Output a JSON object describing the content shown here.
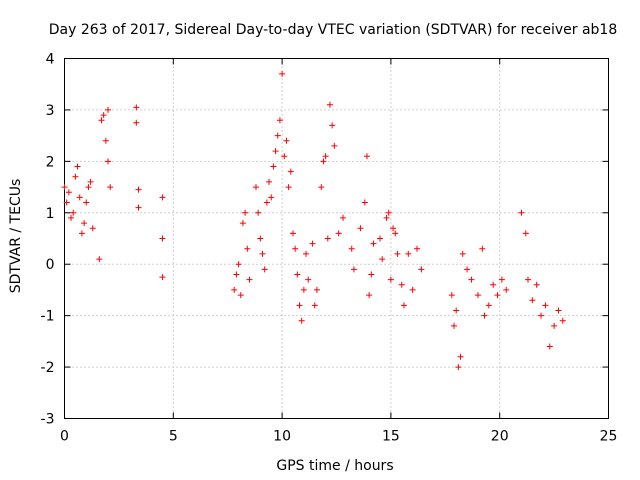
{
  "chart_data": {
    "type": "scatter",
    "title": "Day 263 of 2017, Sidereal Day-to-day VTEC variation (SDTVAR) for receiver ab18",
    "xlabel": "GPS time / hours",
    "ylabel": "SDTVAR / TECUs",
    "xlim": [
      0,
      25
    ],
    "ylim": [
      -3,
      4
    ],
    "xticks": [
      "0",
      "5",
      "10",
      "15",
      "20",
      "25"
    ],
    "yticks": [
      "-3",
      "-2",
      "-1",
      "0",
      "1",
      "2",
      "3",
      "4"
    ],
    "grid": true,
    "marker": "+",
    "color": "#ff0000",
    "series": [
      {
        "name": "SDTVAR",
        "points": [
          [
            0.0,
            1.5
          ],
          [
            0.1,
            1.2
          ],
          [
            0.2,
            1.4
          ],
          [
            0.3,
            0.9
          ],
          [
            0.4,
            1.0
          ],
          [
            0.5,
            1.7
          ],
          [
            0.6,
            1.9
          ],
          [
            0.7,
            1.3
          ],
          [
            0.8,
            0.6
          ],
          [
            0.9,
            0.8
          ],
          [
            1.0,
            1.2
          ],
          [
            1.1,
            1.5
          ],
          [
            1.2,
            1.6
          ],
          [
            1.3,
            0.7
          ],
          [
            1.6,
            0.1
          ],
          [
            1.7,
            2.8
          ],
          [
            1.8,
            2.9
          ],
          [
            1.9,
            2.4
          ],
          [
            2.0,
            2.0
          ],
          [
            2.1,
            1.5
          ],
          [
            2.0,
            3.0
          ],
          [
            3.3,
            3.05
          ],
          [
            3.3,
            2.75
          ],
          [
            3.4,
            1.45
          ],
          [
            3.4,
            1.1
          ],
          [
            4.5,
            1.3
          ],
          [
            4.5,
            0.5
          ],
          [
            4.5,
            -0.25
          ],
          [
            7.8,
            -0.5
          ],
          [
            7.9,
            -0.2
          ],
          [
            8.0,
            0.0
          ],
          [
            8.1,
            -0.6
          ],
          [
            8.2,
            0.8
          ],
          [
            8.3,
            1.0
          ],
          [
            8.4,
            0.3
          ],
          [
            8.5,
            -0.3
          ],
          [
            8.8,
            1.5
          ],
          [
            8.9,
            1.0
          ],
          [
            9.0,
            0.5
          ],
          [
            9.1,
            0.2
          ],
          [
            9.2,
            -0.1
          ],
          [
            9.3,
            1.2
          ],
          [
            9.4,
            1.6
          ],
          [
            9.5,
            1.3
          ],
          [
            9.6,
            1.9
          ],
          [
            9.7,
            2.2
          ],
          [
            9.8,
            2.5
          ],
          [
            9.9,
            2.8
          ],
          [
            10.0,
            3.7
          ],
          [
            10.1,
            2.1
          ],
          [
            10.2,
            2.4
          ],
          [
            10.3,
            1.5
          ],
          [
            10.4,
            1.8
          ],
          [
            10.5,
            0.6
          ],
          [
            10.6,
            0.3
          ],
          [
            10.7,
            -0.2
          ],
          [
            10.8,
            -0.8
          ],
          [
            10.9,
            -1.1
          ],
          [
            11.0,
            -0.5
          ],
          [
            11.1,
            0.2
          ],
          [
            11.2,
            -0.3
          ],
          [
            11.4,
            0.4
          ],
          [
            11.5,
            -0.8
          ],
          [
            11.6,
            -0.5
          ],
          [
            11.8,
            1.5
          ],
          [
            11.9,
            2.0
          ],
          [
            12.0,
            2.1
          ],
          [
            12.1,
            0.5
          ],
          [
            12.2,
            3.1
          ],
          [
            12.3,
            2.7
          ],
          [
            12.4,
            2.3
          ],
          [
            12.6,
            0.6
          ],
          [
            12.8,
            0.9
          ],
          [
            13.2,
            0.3
          ],
          [
            13.3,
            -0.1
          ],
          [
            13.6,
            0.7
          ],
          [
            13.8,
            1.2
          ],
          [
            13.9,
            2.1
          ],
          [
            14.0,
            -0.6
          ],
          [
            14.1,
            -0.2
          ],
          [
            14.2,
            0.4
          ],
          [
            14.5,
            0.5
          ],
          [
            14.6,
            0.1
          ],
          [
            14.8,
            0.9
          ],
          [
            14.9,
            1.0
          ],
          [
            15.0,
            -0.3
          ],
          [
            15.1,
            0.7
          ],
          [
            15.2,
            0.6
          ],
          [
            15.3,
            0.2
          ],
          [
            15.5,
            -0.4
          ],
          [
            15.6,
            -0.8
          ],
          [
            15.8,
            0.2
          ],
          [
            16.0,
            -0.5
          ],
          [
            16.2,
            0.3
          ],
          [
            16.4,
            -0.1
          ],
          [
            17.8,
            -0.6
          ],
          [
            17.9,
            -1.2
          ],
          [
            18.0,
            -0.9
          ],
          [
            18.1,
            -2.0
          ],
          [
            18.2,
            -1.8
          ],
          [
            18.3,
            0.2
          ],
          [
            18.5,
            -0.1
          ],
          [
            18.7,
            -0.3
          ],
          [
            19.0,
            -0.6
          ],
          [
            19.2,
            0.3
          ],
          [
            19.3,
            -1.0
          ],
          [
            19.5,
            -0.8
          ],
          [
            19.7,
            -0.4
          ],
          [
            19.9,
            -0.6
          ],
          [
            20.1,
            -0.3
          ],
          [
            20.3,
            -0.5
          ],
          [
            21.0,
            1.0
          ],
          [
            21.2,
            0.6
          ],
          [
            21.3,
            -0.3
          ],
          [
            21.5,
            -0.7
          ],
          [
            21.7,
            -0.4
          ],
          [
            21.9,
            -1.0
          ],
          [
            22.1,
            -0.8
          ],
          [
            22.3,
            -1.6
          ],
          [
            22.5,
            -1.2
          ],
          [
            22.7,
            -0.9
          ],
          [
            22.9,
            -1.1
          ]
        ]
      }
    ]
  }
}
